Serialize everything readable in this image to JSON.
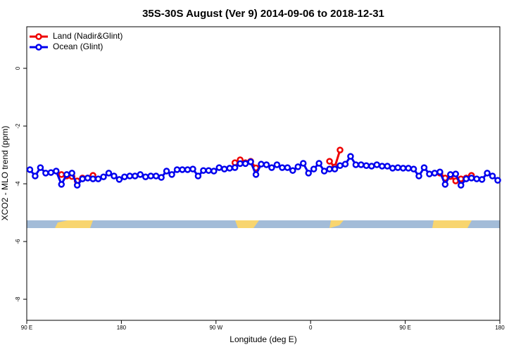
{
  "chart_data": {
    "type": "line",
    "title": "35S-30S August (Ver 9)   2014-09-06 to 2018-12-31",
    "xlabel": "Longitude (deg E)",
    "ylabel": "XCO2 - MLO trend (ppm)",
    "xlim": [
      90,
      540
    ],
    "ylim": [
      -8.73,
      1.44
    ],
    "xticks": [
      {
        "value": 90,
        "label": "90 E"
      },
      180,
      {
        "value": 270,
        "label": "90 W"
      },
      {
        "value": 360,
        "label": "0"
      },
      {
        "value": 450,
        "label": "90 E"
      },
      {
        "value": 540,
        "label": "180"
      }
    ],
    "yticks": [
      0,
      -2,
      -4,
      -6,
      -8
    ],
    "legend": "top-left",
    "series": [
      {
        "name": "Land (Nadir&Glint)",
        "color": "#ee0000",
        "x": [
          123,
          128,
          133,
          138,
          143,
          148,
          153,
          158,
          288,
          293,
          298,
          303,
          308,
          313,
          378,
          383,
          388,
          393,
          483,
          488,
          493,
          498,
          503,
          508,
          513
        ],
        "values": [
          -3.68,
          -3.73,
          -3.75,
          -3.9,
          -3.8,
          -3.8,
          -3.71,
          null,
          -3.27,
          -3.17,
          -3.27,
          -3.22,
          -3.45,
          null,
          -3.22,
          -3.42,
          -2.83,
          null,
          -3.63,
          -3.8,
          -3.75,
          -3.9,
          -3.83,
          -3.8,
          -3.71
        ]
      },
      {
        "name": "Ocean (Glint)",
        "color": "#0000ee",
        "x": [
          93,
          98,
          103,
          108,
          113,
          118,
          123,
          128,
          133,
          138,
          143,
          148,
          153,
          158,
          163,
          168,
          173,
          178,
          183,
          188,
          193,
          198,
          203,
          208,
          213,
          218,
          223,
          228,
          233,
          238,
          243,
          248,
          253,
          258,
          263,
          268,
          273,
          278,
          283,
          288,
          293,
          298,
          303,
          308,
          313,
          318,
          323,
          328,
          333,
          338,
          343,
          348,
          353,
          358,
          363,
          368,
          373,
          378,
          383,
          388,
          393,
          398,
          403,
          408,
          413,
          418,
          423,
          428,
          433,
          438,
          443,
          448,
          453,
          458,
          463,
          468,
          473,
          478,
          483,
          488,
          493,
          498,
          503,
          508,
          513,
          518,
          523,
          528,
          533,
          538
        ],
        "values": [
          -3.51,
          -3.73,
          -3.44,
          -3.63,
          -3.61,
          -3.56,
          -4.02,
          -3.68,
          -3.63,
          -4.05,
          -3.83,
          -3.8,
          -3.83,
          -3.83,
          -3.76,
          -3.63,
          -3.73,
          -3.85,
          -3.76,
          -3.73,
          -3.73,
          -3.68,
          -3.76,
          -3.73,
          -3.73,
          -3.78,
          -3.56,
          -3.68,
          -3.51,
          -3.51,
          -3.51,
          -3.49,
          -3.73,
          -3.54,
          -3.54,
          -3.56,
          -3.44,
          -3.49,
          -3.46,
          -3.44,
          -3.3,
          -3.3,
          -3.24,
          -3.68,
          -3.32,
          -3.34,
          -3.44,
          -3.34,
          -3.44,
          -3.44,
          -3.54,
          -3.41,
          -3.29,
          -3.63,
          -3.49,
          -3.29,
          -3.56,
          -3.49,
          -3.49,
          -3.37,
          -3.32,
          -3.05,
          -3.34,
          -3.34,
          -3.37,
          -3.39,
          -3.34,
          -3.39,
          -3.39,
          -3.46,
          -3.44,
          -3.46,
          -3.46,
          -3.49,
          -3.73,
          -3.44,
          -3.66,
          -3.63,
          -3.59,
          -4.02,
          -3.68,
          -3.66,
          -4.05,
          -3.83,
          -3.8,
          -3.83,
          -3.85,
          -3.63,
          -3.73,
          -3.88
        ]
      }
    ]
  }
}
